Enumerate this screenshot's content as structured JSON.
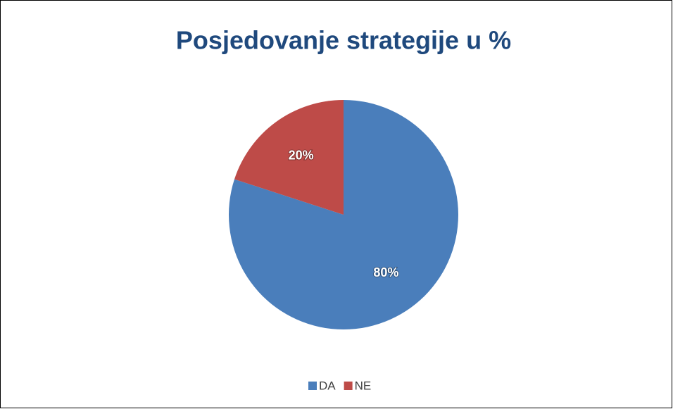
{
  "chart_data": {
    "type": "pie",
    "title": "Posjedovanje strategije u %",
    "categories": [
      "DA",
      "NE"
    ],
    "values": [
      80,
      20
    ],
    "value_labels": [
      "80%",
      "20%"
    ],
    "colors": [
      "#4a7ebb",
      "#be4b48"
    ],
    "legend": "bottom"
  }
}
